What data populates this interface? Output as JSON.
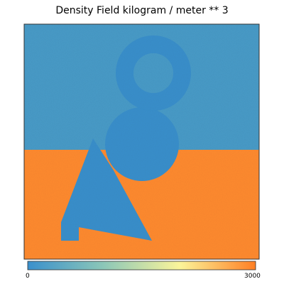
{
  "chart_data": {
    "type": "heatmap",
    "title": "Density Field kilogram / meter ** 3",
    "xlabel": "",
    "ylabel": "",
    "colorbar": {
      "min": 0,
      "max": 3000,
      "tick_labels": [
        "0",
        "3000"
      ],
      "colors": [
        "#3a90cc",
        "#8cc7b8",
        "#fbf59a",
        "#ff7f24"
      ]
    },
    "regions": [
      {
        "name": "upper-layer",
        "value": 200
      },
      {
        "name": "lower-layer",
        "value": 2900
      },
      {
        "name": "inclusion-shapes",
        "value": 0
      }
    ]
  }
}
